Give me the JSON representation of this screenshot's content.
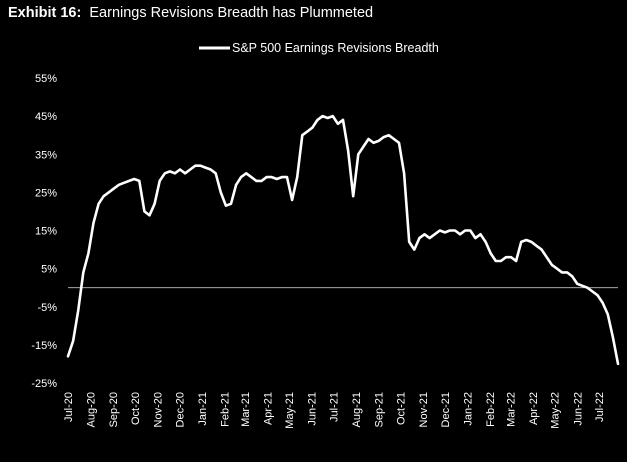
{
  "header": {
    "exhibit": "Exhibit 16:",
    "title": "Earnings Revisions Breadth has Plummeted"
  },
  "colors": {
    "background": "#000000",
    "series": "#ffffff",
    "zero_line": "#bfbfbf"
  },
  "chart_data": {
    "type": "line",
    "title": "Earnings Revisions Breadth has Plummeted",
    "legend_position": "top-center",
    "grid": false,
    "xlabel": "",
    "ylabel": "",
    "ylim": [
      -25,
      55
    ],
    "y_ticks": [
      "55%",
      "45%",
      "35%",
      "25%",
      "15%",
      "5%",
      "-5%",
      "-15%",
      "-25%"
    ],
    "y_tick_values": [
      55,
      45,
      35,
      25,
      15,
      5,
      -5,
      -15,
      -25
    ],
    "x_ticks": [
      "Jul-20",
      "Aug-20",
      "Sep-20",
      "Oct-20",
      "Nov-20",
      "Dec-20",
      "Jan-21",
      "Feb-21",
      "Mar-21",
      "Apr-21",
      "May-21",
      "Jun-21",
      "Jul-21",
      "Aug-21",
      "Sep-21",
      "Oct-21",
      "Nov-21",
      "Dec-21",
      "Jan-22",
      "Feb-22",
      "Mar-22",
      "Apr-22",
      "May-22",
      "Jun-22",
      "Jul-22"
    ],
    "reference_line": {
      "y": 0
    },
    "series": [
      {
        "name": "S&P 500 Earnings Revisions Breadth",
        "x": [
          "2020-07-01",
          "2020-07-08",
          "2020-07-15",
          "2020-07-22",
          "2020-07-29",
          "2020-08-05",
          "2020-08-12",
          "2020-08-19",
          "2020-08-26",
          "2020-09-02",
          "2020-09-09",
          "2020-09-16",
          "2020-09-23",
          "2020-09-30",
          "2020-10-07",
          "2020-10-14",
          "2020-10-21",
          "2020-10-28",
          "2020-11-04",
          "2020-11-11",
          "2020-11-18",
          "2020-11-25",
          "2020-12-02",
          "2020-12-09",
          "2020-12-16",
          "2020-12-23",
          "2020-12-30",
          "2021-01-06",
          "2021-01-13",
          "2021-01-20",
          "2021-01-27",
          "2021-02-03",
          "2021-02-10",
          "2021-02-17",
          "2021-02-24",
          "2021-03-03",
          "2021-03-10",
          "2021-03-17",
          "2021-03-24",
          "2021-03-31",
          "2021-04-07",
          "2021-04-14",
          "2021-04-21",
          "2021-04-28",
          "2021-05-05",
          "2021-05-12",
          "2021-05-19",
          "2021-05-26",
          "2021-06-02",
          "2021-06-09",
          "2021-06-16",
          "2021-06-23",
          "2021-06-30",
          "2021-07-07",
          "2021-07-14",
          "2021-07-21",
          "2021-07-28",
          "2021-08-04",
          "2021-08-11",
          "2021-08-18",
          "2021-08-25",
          "2021-09-01",
          "2021-09-08",
          "2021-09-15",
          "2021-09-22",
          "2021-09-29",
          "2021-10-06",
          "2021-10-13",
          "2021-10-20",
          "2021-10-27",
          "2021-11-03",
          "2021-11-10",
          "2021-11-17",
          "2021-11-24",
          "2021-12-01",
          "2021-12-08",
          "2021-12-15",
          "2021-12-22",
          "2021-12-29",
          "2022-01-05",
          "2022-01-12",
          "2022-01-19",
          "2022-01-26",
          "2022-02-02",
          "2022-02-09",
          "2022-02-16",
          "2022-02-23",
          "2022-03-02",
          "2022-03-09",
          "2022-03-16",
          "2022-03-23",
          "2022-03-30",
          "2022-04-06",
          "2022-04-13",
          "2022-04-20",
          "2022-04-27",
          "2022-05-04",
          "2022-05-11",
          "2022-05-18",
          "2022-05-25",
          "2022-06-01",
          "2022-06-08",
          "2022-06-15",
          "2022-06-22",
          "2022-06-29",
          "2022-07-06",
          "2022-07-13",
          "2022-07-20",
          "2022-07-27"
        ],
        "values": [
          -18,
          -14,
          -6,
          4,
          9,
          17,
          22,
          24,
          25,
          26,
          27,
          27.5,
          28,
          28.5,
          28,
          20,
          19,
          22,
          28,
          30,
          30.5,
          30,
          31,
          30,
          31,
          32,
          32,
          31.5,
          31,
          30,
          25,
          21.5,
          22,
          27,
          29,
          30,
          29,
          28,
          28,
          29,
          29,
          28.5,
          29,
          29,
          23,
          29,
          40,
          41,
          42,
          44,
          45,
          44.5,
          45,
          43,
          44,
          36,
          24,
          35,
          37,
          39,
          38,
          38.5,
          39.5,
          40,
          39,
          38,
          30,
          12,
          10,
          13,
          14,
          13,
          14,
          15,
          14.5,
          15,
          15,
          14,
          15,
          15,
          13,
          14,
          12,
          9,
          7,
          7,
          8,
          8,
          7,
          12,
          12.5,
          12,
          11,
          10,
          8,
          6,
          5,
          4,
          4,
          3,
          1,
          0.5,
          0,
          -1,
          -2,
          -4,
          -7,
          -13,
          -20
        ]
      }
    ]
  }
}
